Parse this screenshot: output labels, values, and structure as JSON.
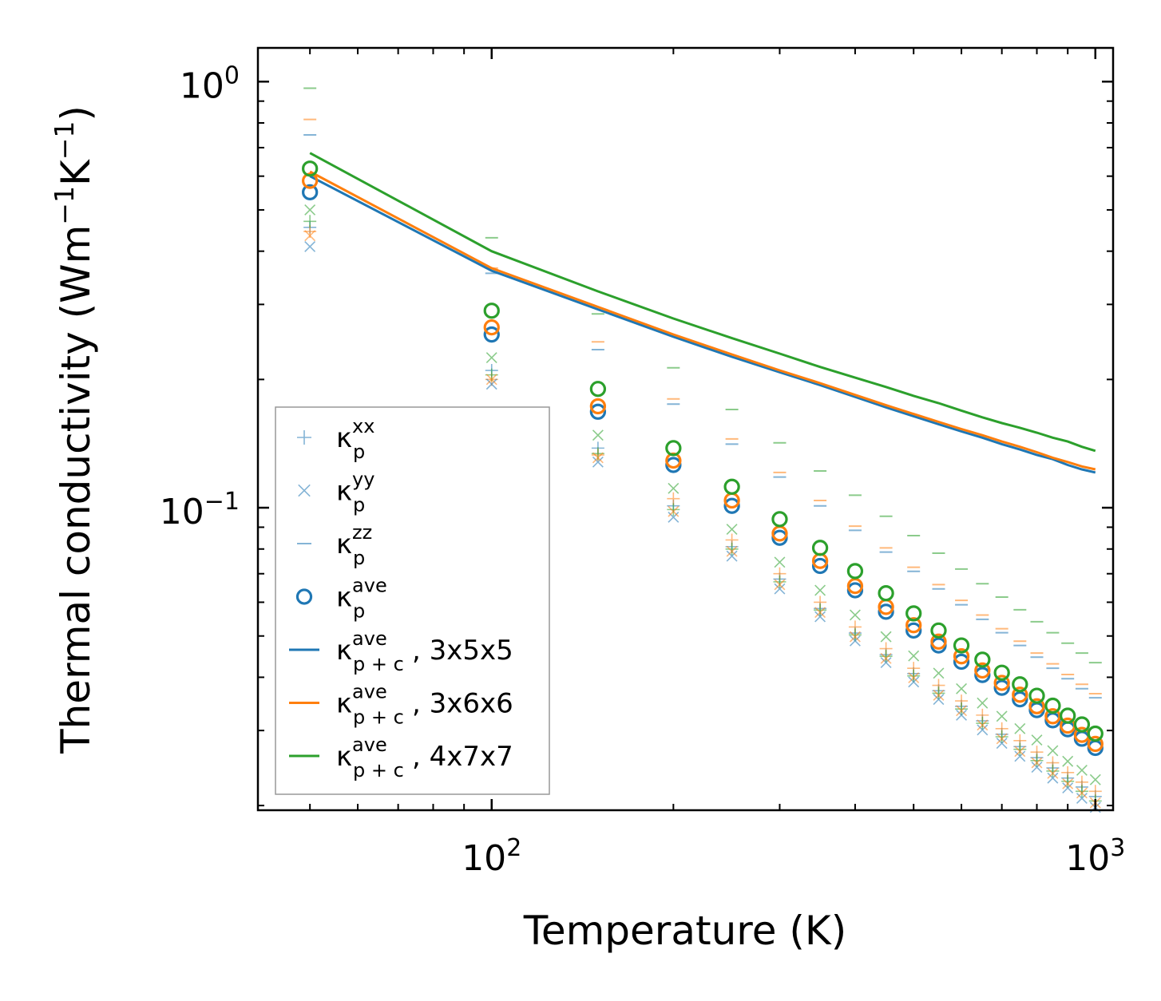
{
  "chart_data": {
    "type": "scatter",
    "title": "",
    "xlabel": "Temperature (K)",
    "ylabel": "Thermal conductivity (Wm",
    "ylabel_sup1": "−1",
    "ylabel_mid": "K",
    "ylabel_sup2": "−1",
    "ylabel_end": ")",
    "xscale": "log",
    "yscale": "log",
    "xlim": [
      41,
      1070
    ],
    "ylim": [
      0.0195,
      1.2
    ],
    "grid": false,
    "legend_position": "lower-left",
    "x_major_ticks": [
      {
        "value": 100,
        "base": "10",
        "exp": "2"
      },
      {
        "value": 1000,
        "base": "10",
        "exp": "3"
      }
    ],
    "y_major_ticks": [
      {
        "value": 1.0,
        "base": "10",
        "exp": "0"
      },
      {
        "value": 0.1,
        "base": "10",
        "exp": "−1"
      }
    ],
    "colors": {
      "blue": "#1f77b4",
      "orange": "#ff7f0e",
      "green": "#2ca02c"
    },
    "x": [
      50,
      100,
      150,
      200,
      250,
      300,
      350,
      400,
      450,
      500,
      550,
      600,
      650,
      700,
      750,
      800,
      850,
      900,
      950,
      1000
    ],
    "scatter_series": [
      {
        "set": "3x5x5",
        "color": "#1f77b4",
        "marker": "circle",
        "values": [
          0.55,
          0.255,
          0.168,
          0.126,
          0.101,
          0.085,
          0.073,
          0.064,
          0.057,
          0.0515,
          0.0475,
          0.0435,
          0.0405,
          0.0378,
          0.0355,
          0.0335,
          0.0317,
          0.0302,
          0.0287,
          0.0273
        ]
      },
      {
        "set": "3x6x6",
        "color": "#ff7f0e",
        "marker": "circle",
        "values": [
          0.585,
          0.265,
          0.173,
          0.129,
          0.104,
          0.087,
          0.075,
          0.0655,
          0.0585,
          0.053,
          0.0485,
          0.0448,
          0.0415,
          0.0388,
          0.0364,
          0.0342,
          0.0324,
          0.0308,
          0.0293,
          0.0279
        ]
      },
      {
        "set": "4x7x7",
        "color": "#2ca02c",
        "marker": "circle",
        "values": [
          0.625,
          0.29,
          0.19,
          0.138,
          0.112,
          0.094,
          0.0805,
          0.071,
          0.063,
          0.0565,
          0.0515,
          0.0475,
          0.044,
          0.041,
          0.0385,
          0.0362,
          0.0343,
          0.0325,
          0.031,
          0.0295
        ]
      },
      {
        "set": "3x5x5",
        "color": "#1f77b4",
        "marker": "plus",
        "component": "xx",
        "values": [
          0.455,
          0.21,
          0.138,
          0.101,
          0.081,
          0.068,
          0.058,
          0.0508,
          0.0452,
          0.0408,
          0.0372,
          0.0342,
          0.0316,
          0.0294,
          0.0275,
          0.0259,
          0.0245,
          0.0232,
          0.0221,
          0.021
        ]
      },
      {
        "set": "3x6x6",
        "color": "#ff7f0e",
        "marker": "plus",
        "component": "xx",
        "values": [
          0.445,
          0.2,
          0.133,
          0.105,
          0.084,
          0.07,
          0.06,
          0.0525,
          0.0467,
          0.042,
          0.0383,
          0.0352,
          0.0326,
          0.0303,
          0.0284,
          0.0267,
          0.0252,
          0.0239,
          0.0227,
          0.0216
        ]
      },
      {
        "set": "4x7x7",
        "color": "#2ca02c",
        "marker": "plus",
        "component": "xx",
        "values": [
          0.47,
          0.205,
          0.134,
          0.099,
          0.08,
          0.067,
          0.0575,
          0.0503,
          0.0448,
          0.0403,
          0.0367,
          0.0337,
          0.0312,
          0.029,
          0.0271,
          0.0255,
          0.0241,
          0.0228,
          0.0216,
          0.0205
        ]
      },
      {
        "set": "3x5x5",
        "color": "#1f77b4",
        "marker": "x",
        "component": "yy",
        "values": [
          0.41,
          0.195,
          0.128,
          0.095,
          0.077,
          0.0645,
          0.0555,
          0.0487,
          0.0433,
          0.039,
          0.0355,
          0.0326,
          0.0301,
          0.028,
          0.0261,
          0.0246,
          0.0232,
          0.022,
          0.0208,
          0.0198
        ]
      },
      {
        "set": "3x6x6",
        "color": "#ff7f0e",
        "marker": "x",
        "component": "yy",
        "values": [
          0.435,
          0.2,
          0.131,
          0.098,
          0.079,
          0.066,
          0.0568,
          0.0498,
          0.0443,
          0.0399,
          0.0363,
          0.0334,
          0.0309,
          0.0287,
          0.0268,
          0.0252,
          0.0238,
          0.0225,
          0.0214,
          0.0203
        ]
      },
      {
        "set": "4x7x7",
        "color": "#2ca02c",
        "marker": "x",
        "component": "yy",
        "values": [
          0.5,
          0.225,
          0.148,
          0.111,
          0.089,
          0.0745,
          0.064,
          0.056,
          0.0498,
          0.0449,
          0.0409,
          0.0376,
          0.0348,
          0.0324,
          0.0303,
          0.0285,
          0.0269,
          0.0254,
          0.0242,
          0.023
        ]
      },
      {
        "set": "3x5x5",
        "color": "#1f77b4",
        "marker": "hline",
        "component": "zz",
        "values": [
          0.75,
          0.355,
          0.235,
          0.175,
          0.141,
          0.118,
          0.101,
          0.0885,
          0.0787,
          0.0709,
          0.0645,
          0.0592,
          0.0547,
          0.0509,
          0.0475,
          0.0446,
          0.042,
          0.0397,
          0.0376,
          0.0358
        ]
      },
      {
        "set": "3x6x6",
        "color": "#ff7f0e",
        "marker": "hline",
        "component": "zz",
        "values": [
          0.815,
          0.365,
          0.245,
          0.18,
          0.145,
          0.121,
          0.104,
          0.0905,
          0.0805,
          0.0725,
          0.066,
          0.0606,
          0.056,
          0.052,
          0.0486,
          0.0456,
          0.043,
          0.0406,
          0.0385,
          0.0366
        ]
      },
      {
        "set": "4x7x7",
        "color": "#2ca02c",
        "marker": "hline",
        "component": "zz",
        "values": [
          0.965,
          0.43,
          0.285,
          0.213,
          0.17,
          0.142,
          0.122,
          0.107,
          0.0955,
          0.086,
          0.0782,
          0.0718,
          0.0663,
          0.0617,
          0.0576,
          0.054,
          0.0509,
          0.0481,
          0.0456,
          0.0433
        ]
      }
    ],
    "line_series": [
      {
        "name": "3x5x5",
        "color": "#1f77b4",
        "values": [
          0.6,
          0.36,
          0.292,
          0.252,
          0.226,
          0.208,
          0.194,
          0.182,
          0.172,
          0.164,
          0.157,
          0.151,
          0.146,
          0.141,
          0.137,
          0.133,
          0.13,
          0.126,
          0.123,
          0.121
        ]
      },
      {
        "name": "3x6x6",
        "color": "#ff7f0e",
        "values": [
          0.615,
          0.365,
          0.296,
          0.255,
          0.229,
          0.21,
          0.196,
          0.184,
          0.174,
          0.166,
          0.159,
          0.153,
          0.148,
          0.143,
          0.139,
          0.135,
          0.131,
          0.128,
          0.125,
          0.123
        ]
      },
      {
        "name": "4x7x7",
        "color": "#2ca02c",
        "values": [
          0.68,
          0.4,
          0.322,
          0.278,
          0.25,
          0.23,
          0.214,
          0.202,
          0.192,
          0.183,
          0.176,
          0.169,
          0.163,
          0.158,
          0.154,
          0.15,
          0.146,
          0.143,
          0.139,
          0.136
        ]
      }
    ],
    "legend": [
      {
        "marker": "plus",
        "color": "#1f77b4",
        "label": "κ",
        "sub": "p",
        "sup": "xx",
        "suffix": ""
      },
      {
        "marker": "x",
        "color": "#1f77b4",
        "label": "κ",
        "sub": "p",
        "sup": "yy",
        "suffix": ""
      },
      {
        "marker": "hline",
        "color": "#1f77b4",
        "label": "κ",
        "sub": "p",
        "sup": "zz",
        "suffix": ""
      },
      {
        "marker": "circle",
        "color": "#1f77b4",
        "label": "κ",
        "sub": "p",
        "sup": "ave",
        "suffix": ""
      },
      {
        "marker": "line",
        "color": "#1f77b4",
        "label": "κ",
        "sub": "p + c",
        "sup": "ave",
        "suffix": ", 3x5x5"
      },
      {
        "marker": "line",
        "color": "#ff7f0e",
        "label": "κ",
        "sub": "p + c",
        "sup": "ave",
        "suffix": ", 3x6x6"
      },
      {
        "marker": "line",
        "color": "#2ca02c",
        "label": "κ",
        "sub": "p + c",
        "sup": "ave",
        "suffix": ", 4x7x7"
      }
    ]
  }
}
